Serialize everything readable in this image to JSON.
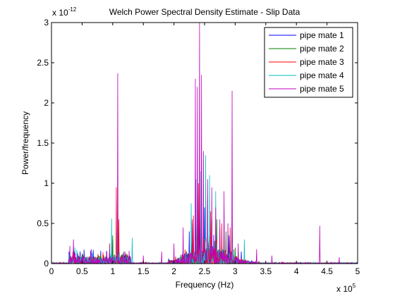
{
  "chart_data": {
    "type": "line",
    "title": "Welch Power Spectral Density Estimate - Slip Data",
    "xlabel": "Frequency (Hz)",
    "ylabel": "Power/frequency",
    "x_exponent_base": "x 10",
    "x_exponent_power": "5",
    "y_exponent_base": "x 10",
    "y_exponent_power": "-12",
    "xlim": [
      0,
      5
    ],
    "ylim": [
      0,
      3
    ],
    "xticks": [
      "0",
      "0.5",
      "1",
      "1.5",
      "2",
      "2.5",
      "3",
      "3.5",
      "4",
      "4.5",
      "5"
    ],
    "yticks": [
      "0",
      "0.5",
      "1",
      "1.5",
      "2",
      "2.5",
      "3"
    ],
    "grid": false,
    "legend_position": "top-right",
    "series": [
      {
        "name": "pipe mate 1",
        "color": "#0000ff",
        "peaks": [
          [
            0.35,
            0.12
          ],
          [
            1.0,
            0.3
          ],
          [
            1.08,
            0.6
          ],
          [
            2.25,
            0.4
          ],
          [
            2.35,
            0.55
          ],
          [
            2.42,
            0.9
          ],
          [
            2.5,
            0.7
          ],
          [
            2.62,
            0.55
          ],
          [
            2.75,
            0.45
          ],
          [
            2.9,
            0.35
          ],
          [
            3.1,
            0.15
          ]
        ]
      },
      {
        "name": "pipe mate 2",
        "color": "#008000",
        "peaks": [
          [
            0.35,
            0.1
          ],
          [
            1.0,
            0.35
          ],
          [
            1.08,
            0.7
          ],
          [
            2.3,
            0.5
          ],
          [
            2.38,
            0.85
          ],
          [
            2.45,
            1.05
          ],
          [
            2.55,
            0.8
          ],
          [
            2.7,
            0.55
          ],
          [
            2.85,
            0.4
          ],
          [
            3.0,
            0.2
          ]
        ]
      },
      {
        "name": "pipe mate 3",
        "color": "#ff0000",
        "peaks": [
          [
            0.35,
            0.15
          ],
          [
            0.95,
            0.25
          ],
          [
            1.06,
            0.95
          ],
          [
            1.1,
            0.55
          ],
          [
            2.32,
            0.6
          ],
          [
            2.4,
            1.0
          ],
          [
            2.48,
            0.75
          ],
          [
            2.6,
            0.65
          ],
          [
            2.78,
            0.5
          ],
          [
            2.92,
            0.45
          ]
        ]
      },
      {
        "name": "pipe mate 4",
        "color": "#00bfbf",
        "peaks": [
          [
            0.38,
            0.2
          ],
          [
            0.98,
            0.56
          ],
          [
            1.08,
            0.8
          ],
          [
            1.32,
            0.32
          ],
          [
            2.28,
            0.75
          ],
          [
            2.36,
            1.05
          ],
          [
            2.44,
            1.15
          ],
          [
            2.52,
            1.35
          ],
          [
            2.58,
            1.1
          ],
          [
            2.68,
            0.9
          ],
          [
            2.82,
            0.65
          ],
          [
            2.95,
            0.55
          ],
          [
            3.15,
            0.3
          ]
        ]
      },
      {
        "name": "pipe mate 5",
        "color": "#bf00bf",
        "peaks": [
          [
            0.3,
            0.22
          ],
          [
            0.36,
            0.3
          ],
          [
            0.5,
            0.12
          ],
          [
            0.65,
            0.18
          ],
          [
            0.95,
            0.2
          ],
          [
            1.08,
            2.37
          ],
          [
            1.2,
            0.15
          ],
          [
            1.5,
            0.1
          ],
          [
            1.8,
            0.15
          ],
          [
            2.0,
            0.25
          ],
          [
            2.15,
            0.45
          ],
          [
            2.3,
            0.55
          ],
          [
            2.35,
            2.3
          ],
          [
            2.38,
            2.2
          ],
          [
            2.42,
            3.0
          ],
          [
            2.45,
            2.35
          ],
          [
            2.48,
            1.4
          ],
          [
            2.55,
            1.05
          ],
          [
            2.62,
            0.95
          ],
          [
            2.68,
            0.7
          ],
          [
            2.75,
            0.55
          ],
          [
            2.82,
            0.9
          ],
          [
            2.88,
            0.5
          ],
          [
            2.95,
            2.15
          ],
          [
            3.05,
            0.25
          ],
          [
            3.35,
            0.18
          ],
          [
            3.6,
            0.1
          ],
          [
            4.38,
            0.47
          ],
          [
            4.7,
            0.08
          ]
        ]
      }
    ]
  }
}
